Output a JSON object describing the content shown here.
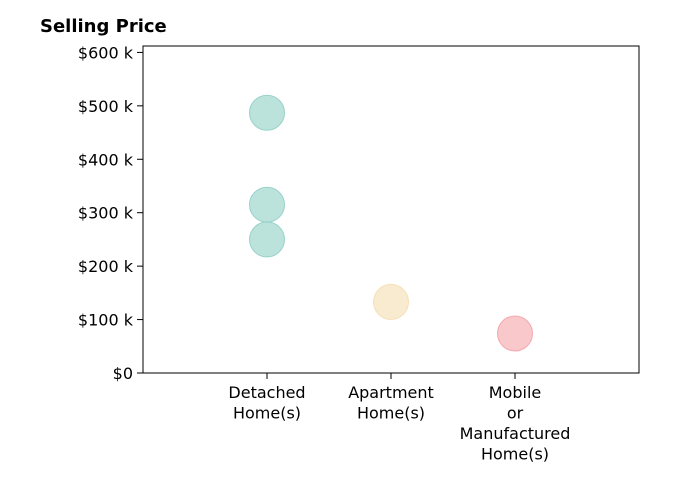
{
  "chart_data": {
    "type": "scatter",
    "title": "Selling Price",
    "xlabel": "",
    "ylabel": "",
    "categories": [
      [
        "Detached",
        "Home(s)"
      ],
      [
        "Apartment",
        "Home(s)"
      ],
      [
        "Mobile",
        "or",
        "Manufactured",
        "Home(s)"
      ]
    ],
    "y_tick_labels": [
      "$0",
      "$100 k",
      "$200 k",
      "$300 k",
      "$400 k",
      "$500 k",
      "$600 k"
    ],
    "y_ticks": [
      0,
      100000,
      200000,
      300000,
      400000,
      500000,
      600000
    ],
    "ylim": [
      0,
      612000
    ],
    "grid": false,
    "points": [
      {
        "category": 0,
        "y": 487000,
        "color": "#8fcfc4"
      },
      {
        "category": 0,
        "y": 315000,
        "color": "#8fcfc4"
      },
      {
        "category": 0,
        "y": 250000,
        "color": "#8fcfc4"
      },
      {
        "category": 1,
        "y": 133000,
        "color": "#f5deb0"
      },
      {
        "category": 2,
        "y": 74000,
        "color": "#f4a3a8"
      }
    ]
  }
}
